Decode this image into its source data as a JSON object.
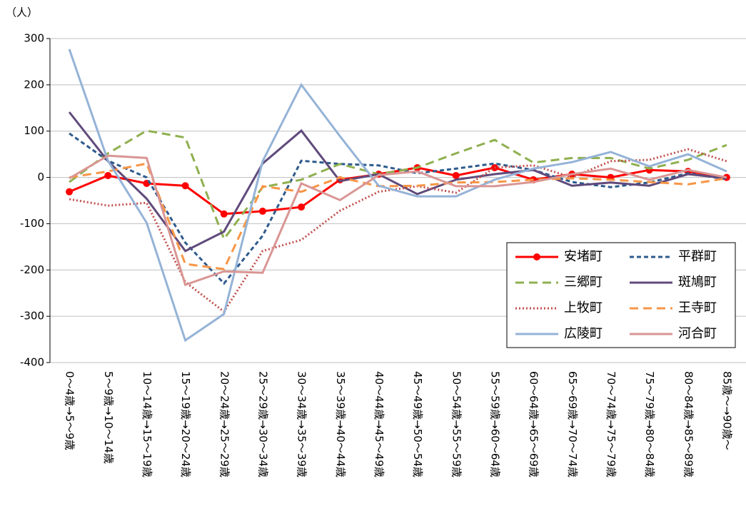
{
  "chart_data": {
    "type": "line",
    "unit_label": "（人）",
    "categories": [
      "0～4歳→5～9歳",
      "5～9歳→10～14歳",
      "10～14歳→15～19歳",
      "15～19歳→20～24歳",
      "20～24歳→25～29歳",
      "25～29歳→30～34歳",
      "30～34歳→35～39歳",
      "35～39歳→40～44歳",
      "40～44歳→45～49歳",
      "45～49歳→50～54歳",
      "50～54歳→55～59歳",
      "55～59歳→60～64歳",
      "60～64歳→65～69歳",
      "65～69歳→70～74歳",
      "70～74歳→75～79歳",
      "75～79歳→80～84歳",
      "80～84歳→85～89歳",
      "85歳～→90歳～"
    ],
    "ylim": [
      -400,
      300
    ],
    "yticks": [
      -400,
      -300,
      -200,
      -100,
      0,
      100,
      200,
      300
    ],
    "grid": true,
    "series": [
      {
        "name": "安堵町",
        "color": "#ff0000",
        "dash": "solid",
        "marker": true,
        "values": [
          -31,
          4,
          -13,
          -18,
          -79,
          -73,
          -64,
          -5,
          7,
          21,
          4,
          21,
          -5,
          7,
          0,
          16,
          13,
          0
        ]
      },
      {
        "name": "平群町",
        "color": "#2e5a8c",
        "dash": "dashed",
        "values": [
          95,
          36,
          0,
          -141,
          -229,
          -126,
          36,
          29,
          26,
          9,
          19,
          30,
          16,
          -10,
          -21,
          -11,
          9,
          -4
        ]
      },
      {
        "name": "三郷町",
        "color": "#8fb04f",
        "dash": "longdash",
        "values": [
          -10,
          52,
          101,
          86,
          -133,
          -21,
          -5,
          29,
          7,
          21,
          52,
          81,
          32,
          42,
          42,
          19,
          38,
          70
        ]
      },
      {
        "name": "斑鳩町",
        "color": "#604a7b",
        "dash": "solid",
        "values": [
          141,
          35,
          -46,
          -159,
          -117,
          30,
          101,
          -8,
          7,
          -36,
          -5,
          7,
          16,
          -18,
          -11,
          -18,
          7,
          -2
        ]
      },
      {
        "name": "上牧町",
        "color": "#c0504d",
        "dash": "dotted",
        "values": [
          -47,
          -61,
          -55,
          -226,
          -290,
          -159,
          -135,
          -72,
          -31,
          -19,
          -33,
          21,
          26,
          0,
          35,
          38,
          61,
          35
        ]
      },
      {
        "name": "王寺町",
        "color": "#f79646",
        "dash": "longdash",
        "values": [
          0,
          13,
          30,
          -187,
          -198,
          -19,
          -31,
          0,
          -19,
          -18,
          -11,
          -10,
          -5,
          -2,
          -5,
          -10,
          -15,
          -2
        ]
      },
      {
        "name": "広陵町",
        "color": "#95b3d7",
        "dash": "solid",
        "values": [
          277,
          36,
          -98,
          -352,
          -295,
          35,
          200,
          89,
          -18,
          -41,
          -41,
          -5,
          19,
          33,
          55,
          24,
          50,
          13
        ]
      },
      {
        "name": "河合町",
        "color": "#d99694",
        "dash": "solid",
        "values": [
          -2,
          47,
          42,
          -232,
          -203,
          -206,
          -13,
          -49,
          5,
          13,
          -19,
          -19,
          -10,
          7,
          19,
          -5,
          16,
          0
        ]
      }
    ],
    "legend": "lower-right"
  }
}
